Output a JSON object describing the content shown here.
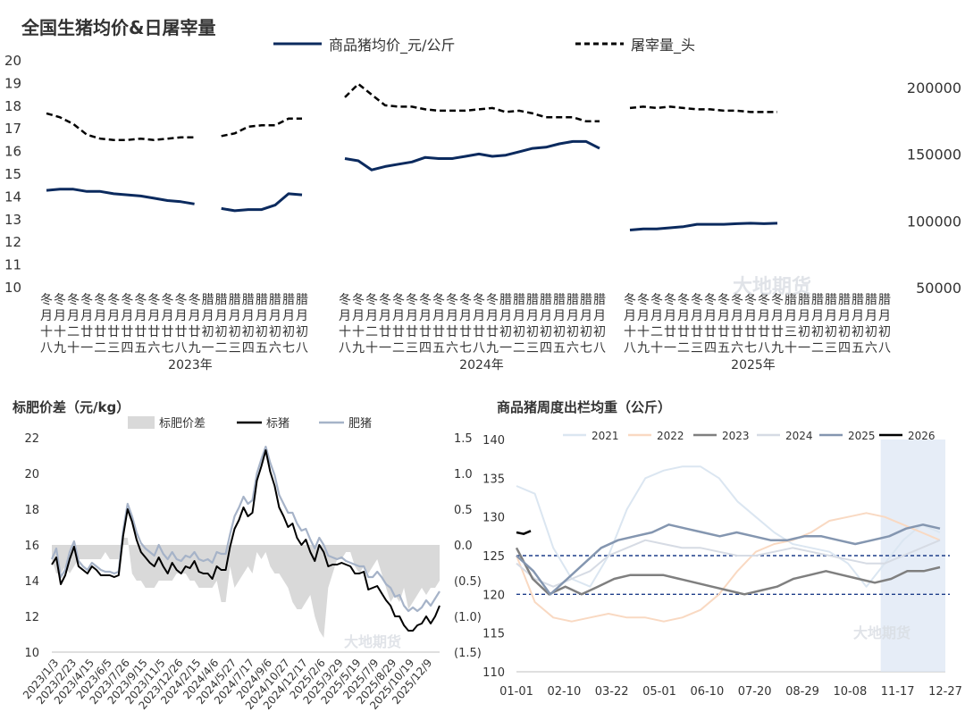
{
  "chart_data": [
    {
      "type": "line",
      "title": "全国生猪均价&日屠宰量",
      "legend": [
        "商品猪均价_元/公斤",
        "屠宰量_头"
      ],
      "ylim_left": [
        10,
        20
      ],
      "y_ticks_left": [
        "20",
        "19",
        "18",
        "17",
        "16",
        "15",
        "14",
        "13",
        "12",
        "11",
        "10"
      ],
      "ylim_right": [
        50000,
        200000
      ],
      "y_ticks_right": [
        "200000",
        "150000",
        "100000",
        "50000"
      ],
      "x_categories": [
        "冬月十八",
        "冬月十九",
        "冬月二十",
        "冬月廿一",
        "冬月廿二",
        "冬月廿三",
        "冬月廿四",
        "冬月廿五",
        "冬月廿六",
        "冬月廿七",
        "冬月廿八",
        "冬月廿九",
        "腊月初一",
        "腊月初二",
        "腊月初三",
        "腊月初四",
        "腊月初五",
        "腊月初六",
        "腊月初七",
        "腊月初八"
      ],
      "x_label_rows": [
        [
          "冬",
          "冬",
          "冬",
          "冬",
          "冬",
          "冬",
          "冬",
          "冬",
          "冬",
          "冬",
          "冬",
          "冬",
          "腊",
          "腊",
          "腊",
          "腊",
          "腊",
          "腊",
          "腊",
          "腊"
        ],
        [
          "月",
          "月",
          "月",
          "月",
          "月",
          "月",
          "月",
          "月",
          "月",
          "月",
          "月",
          "月",
          "月",
          "月",
          "月",
          "月",
          "月",
          "月",
          "月",
          "月"
        ],
        [
          "十",
          "十",
          "二",
          "廿",
          "廿",
          "廿",
          "廿",
          "廿",
          "廿",
          "廿",
          "廿",
          "廿",
          "初",
          "初",
          "初",
          "初",
          "初",
          "初",
          "初",
          "初"
        ],
        [
          "八",
          "九",
          "十",
          "一",
          "二",
          "三",
          "四",
          "五",
          "六",
          "七",
          "八",
          "九",
          "一",
          "二",
          "三",
          "四",
          "五",
          "六",
          "七",
          "八"
        ]
      ],
      "x_label_rows_2025": [
        [
          "冬",
          "冬",
          "冬",
          "冬",
          "冬",
          "冬",
          "冬",
          "冬",
          "冬",
          "冬",
          "冬",
          "冬",
          "腊",
          "腊",
          "腊",
          "腊",
          "腊",
          "腊",
          "腊",
          "腊"
        ],
        [
          "月",
          "月",
          "月",
          "月",
          "月",
          "月",
          "月",
          "月",
          "月",
          "月",
          "月",
          "月",
          "月",
          "月",
          "月",
          "月",
          "月",
          "月",
          "月",
          "月"
        ],
        [
          "十",
          "十",
          "二",
          "廿",
          "廿",
          "廿",
          "廿",
          "廿",
          "廿",
          "廿",
          "廿",
          "廿",
          "三",
          "初",
          "初",
          "初",
          "初",
          "初",
          "初",
          "初"
        ],
        [
          "八",
          "九",
          "十",
          "一",
          "二",
          "三",
          "四",
          "五",
          "六",
          "七",
          "八",
          "九",
          "十",
          "一",
          "二",
          "三",
          "四",
          "五",
          "六",
          "八"
        ]
      ],
      "groups": [
        {
          "name": "2023年",
          "price": [
            14.25,
            14.3,
            14.3,
            14.2,
            14.2,
            14.1,
            14.05,
            14.0,
            13.9,
            13.8,
            13.75,
            13.65,
            null,
            13.45,
            13.35,
            13.4,
            13.4,
            13.6,
            14.1,
            14.05
          ],
          "slaughter": [
            180000,
            177000,
            172000,
            164000,
            161000,
            160000,
            160000,
            161000,
            160000,
            161000,
            162000,
            162000,
            null,
            163000,
            165000,
            170000,
            171000,
            171000,
            176000,
            176000
          ]
        },
        {
          "name": "2024年",
          "price": [
            15.65,
            15.55,
            15.15,
            15.3,
            15.4,
            15.5,
            15.7,
            15.65,
            15.65,
            15.75,
            15.85,
            15.75,
            15.8,
            15.95,
            16.1,
            16.15,
            16.3,
            16.4,
            16.4,
            16.1
          ],
          "slaughter": [
            192000,
            202000,
            194000,
            186000,
            185000,
            185000,
            183000,
            182000,
            182000,
            182000,
            183000,
            184000,
            181000,
            182000,
            180000,
            177000,
            177000,
            177000,
            174000,
            174000
          ],
          "price_gap_before": [
            6
          ]
        },
        {
          "name": "2025年",
          "price": [
            12.5,
            12.55,
            12.55,
            12.6,
            12.65,
            12.75,
            12.75,
            12.75,
            12.78,
            12.8,
            12.78,
            12.8
          ],
          "slaughter": [
            184000,
            185000,
            184000,
            185000,
            184000,
            183000,
            183000,
            182000,
            182000,
            181000,
            181000,
            181000
          ]
        }
      ],
      "watermark": "大地期货"
    },
    {
      "type": "area+line",
      "title": "标肥价差（元/kg）",
      "legend": [
        "标肥价差",
        "标猪",
        "肥猪"
      ],
      "ylim_left": [
        10,
        22
      ],
      "y_ticks_left": [
        "22",
        "20",
        "18",
        "16",
        "14",
        "12",
        "10"
      ],
      "ylim_right": [
        -1.5,
        1.5
      ],
      "y_ticks_right": [
        "1.5",
        "1.0",
        "0.5",
        "0.0",
        "(0.5)",
        "(1.0)",
        "(1.5)"
      ],
      "x_ticks": [
        "2023/1/3",
        "2023/2/23",
        "2023/4/15",
        "2023/6/5",
        "2023/7/26",
        "2023/9/15",
        "2023/11/5",
        "2023/12/26",
        "2024/2/15",
        "2024/4/6",
        "2024/5/27",
        "2024/7/17",
        "2024/9/6",
        "2024/10/27",
        "2024/12/17",
        "2025/2/6",
        "2025/3/29",
        "2025/5/19",
        "2025/7/9",
        "2025/8/29",
        "2025/10/19",
        "2025/12/9"
      ],
      "series": [
        {
          "name": "标猪",
          "values": [
            14.9,
            15.3,
            13.8,
            14.3,
            15.2,
            15.9,
            14.8,
            14.6,
            14.4,
            14.8,
            14.6,
            14.3,
            14.3,
            14.3,
            14.2,
            14.3,
            16.5,
            18.0,
            17.3,
            16.3,
            15.6,
            15.3,
            15.0,
            14.8,
            15.3,
            14.8,
            14.4,
            15.0,
            14.6,
            14.4,
            14.8,
            14.7,
            15.1,
            14.5,
            14.4,
            14.4,
            14.1,
            14.8,
            14.6,
            14.6,
            15.9,
            16.9,
            17.4,
            18.1,
            17.6,
            17.8,
            19.6,
            20.4,
            21.3,
            20.1,
            19.3,
            18.1,
            17.6,
            17.0,
            17.2,
            16.4,
            16.0,
            16.3,
            15.6,
            15.1,
            16.0,
            15.6,
            14.8,
            14.9,
            14.9,
            15.0,
            14.9,
            14.8,
            14.4,
            14.4,
            14.5,
            13.5,
            13.6,
            13.7,
            13.3,
            12.9,
            12.6,
            12.0,
            12.0,
            11.5,
            11.2,
            11.2,
            11.5,
            11.6,
            12.0,
            11.6,
            12.0,
            12.6
          ]
        },
        {
          "name": "肥猪",
          "values": [
            15.2,
            15.8,
            14.2,
            14.6,
            15.6,
            16.2,
            15.1,
            14.8,
            14.6,
            15.0,
            14.8,
            14.6,
            14.5,
            14.5,
            14.4,
            14.5,
            16.8,
            18.3,
            17.6,
            16.7,
            16.1,
            15.8,
            15.6,
            15.4,
            16.0,
            15.5,
            15.2,
            15.6,
            15.2,
            15.1,
            15.4,
            15.3,
            15.6,
            15.2,
            15.1,
            15.2,
            15.0,
            15.6,
            15.5,
            15.5,
            16.6,
            17.6,
            18.1,
            18.7,
            18.3,
            18.5,
            20.0,
            20.8,
            21.5,
            20.6,
            19.9,
            18.8,
            18.3,
            17.8,
            17.8,
            17.2,
            16.8,
            16.9,
            16.3,
            15.8,
            16.4,
            16.0,
            15.4,
            15.3,
            15.2,
            15.3,
            15.1,
            15.0,
            14.9,
            14.8,
            14.8,
            14.2,
            14.2,
            14.5,
            14.2,
            13.8,
            13.6,
            13.1,
            13.2,
            12.6,
            12.3,
            12.5,
            12.3,
            12.5,
            12.9,
            12.6,
            13.0,
            13.4
          ]
        },
        {
          "name": "标肥价差",
          "values": [
            -0.2,
            -0.4,
            -0.4,
            -0.3,
            -0.4,
            -0.3,
            -0.2,
            -0.2,
            -0.2,
            -0.2,
            -0.2,
            -0.2,
            -0.1,
            -0.2,
            -0.2,
            -0.2,
            0.1,
            0.1,
            -0.4,
            -0.5,
            -0.5,
            -0.6,
            -0.6,
            -0.6,
            -0.5,
            -0.5,
            -0.5,
            -0.5,
            -0.4,
            -0.4,
            -0.4,
            -0.5,
            -0.5,
            -0.6,
            -0.6,
            -0.6,
            -0.6,
            -0.5,
            -0.8,
            -0.8,
            -0.3,
            -0.6,
            -0.5,
            -0.4,
            -0.3,
            -0.4,
            -0.1,
            -0.2,
            -0.1,
            -0.3,
            -0.4,
            -0.4,
            -0.5,
            -0.6,
            -0.8,
            -0.9,
            -0.9,
            -0.8,
            -0.7,
            -1.0,
            -1.2,
            -1.3,
            -0.6,
            -0.4,
            -0.2,
            -0.2,
            -0.1,
            -0.1,
            -0.3,
            -0.4,
            -0.3,
            -0.4,
            -0.3,
            -0.2,
            -0.4,
            -0.6,
            -0.8,
            -0.7,
            -0.8,
            -0.6,
            -0.9,
            -0.8,
            -0.7,
            -0.6,
            -0.7,
            -0.6,
            -0.6,
            -0.5
          ]
        }
      ],
      "watermark": "大地期货"
    },
    {
      "type": "line",
      "title": "商品猪周度出栏均重（公斤）",
      "legend": [
        "2021",
        "2022",
        "2023",
        "2024",
        "2025",
        "2026"
      ],
      "colors": {
        "2021": "#dbe6f1",
        "2022": "#f9d9c2",
        "2023": "#7f7f7f",
        "2024": "#d6dbe4",
        "2025": "#8496b0",
        "2026": "#000000"
      },
      "ylim": [
        110,
        140
      ],
      "y_ticks": [
        "140",
        "135",
        "130",
        "125",
        "120",
        "115",
        "110"
      ],
      "x_ticks": [
        "01-01",
        "02-10",
        "03-22",
        "05-01",
        "06-10",
        "07-20",
        "08-29",
        "10-08",
        "11-17",
        "12-27"
      ],
      "reference_lines": [
        125,
        120
      ],
      "highlight_band": [
        "11-07",
        "12-27"
      ],
      "series": [
        {
          "name": "2021",
          "values": [
            134,
            133,
            126,
            122,
            121,
            125,
            131,
            135,
            136,
            136.5,
            136.5,
            135,
            132,
            130,
            128,
            126.5,
            126,
            125.5,
            124,
            121,
            124,
            127,
            129,
            128
          ]
        },
        {
          "name": "2022",
          "values": [
            125,
            119,
            117,
            116.5,
            117,
            117.5,
            117,
            117,
            116.5,
            117,
            118,
            120,
            123,
            125.5,
            126.5,
            127,
            128,
            129.5,
            130,
            130.5,
            130,
            129,
            128,
            127
          ]
        },
        {
          "name": "2023",
          "values": [
            126,
            122,
            120,
            121,
            120,
            121,
            122,
            122.5,
            122.5,
            122.5,
            122,
            121.5,
            121,
            120.5,
            120,
            120.5,
            121,
            122,
            122.5,
            123,
            122.5,
            122,
            121.5,
            122,
            123,
            123,
            123.5
          ]
        },
        {
          "name": "2024",
          "values": [
            124,
            122,
            121,
            122,
            123,
            125,
            126,
            127,
            126.5,
            126,
            126,
            125.5,
            125,
            125,
            125.5,
            126,
            125.5,
            125,
            124.5,
            124,
            124,
            125,
            126,
            127
          ]
        },
        {
          "name": "2025",
          "values": [
            125,
            123,
            120,
            122,
            124,
            126,
            127,
            127.5,
            128,
            129,
            128.5,
            128,
            127.5,
            128,
            127.5,
            127,
            127,
            127.5,
            127.5,
            127,
            126.5,
            127,
            127.5,
            128.5,
            129,
            128.5
          ]
        },
        {
          "name": "2026",
          "values": [
            128,
            127.8,
            128.2
          ]
        }
      ],
      "watermark": "大地期货"
    }
  ]
}
